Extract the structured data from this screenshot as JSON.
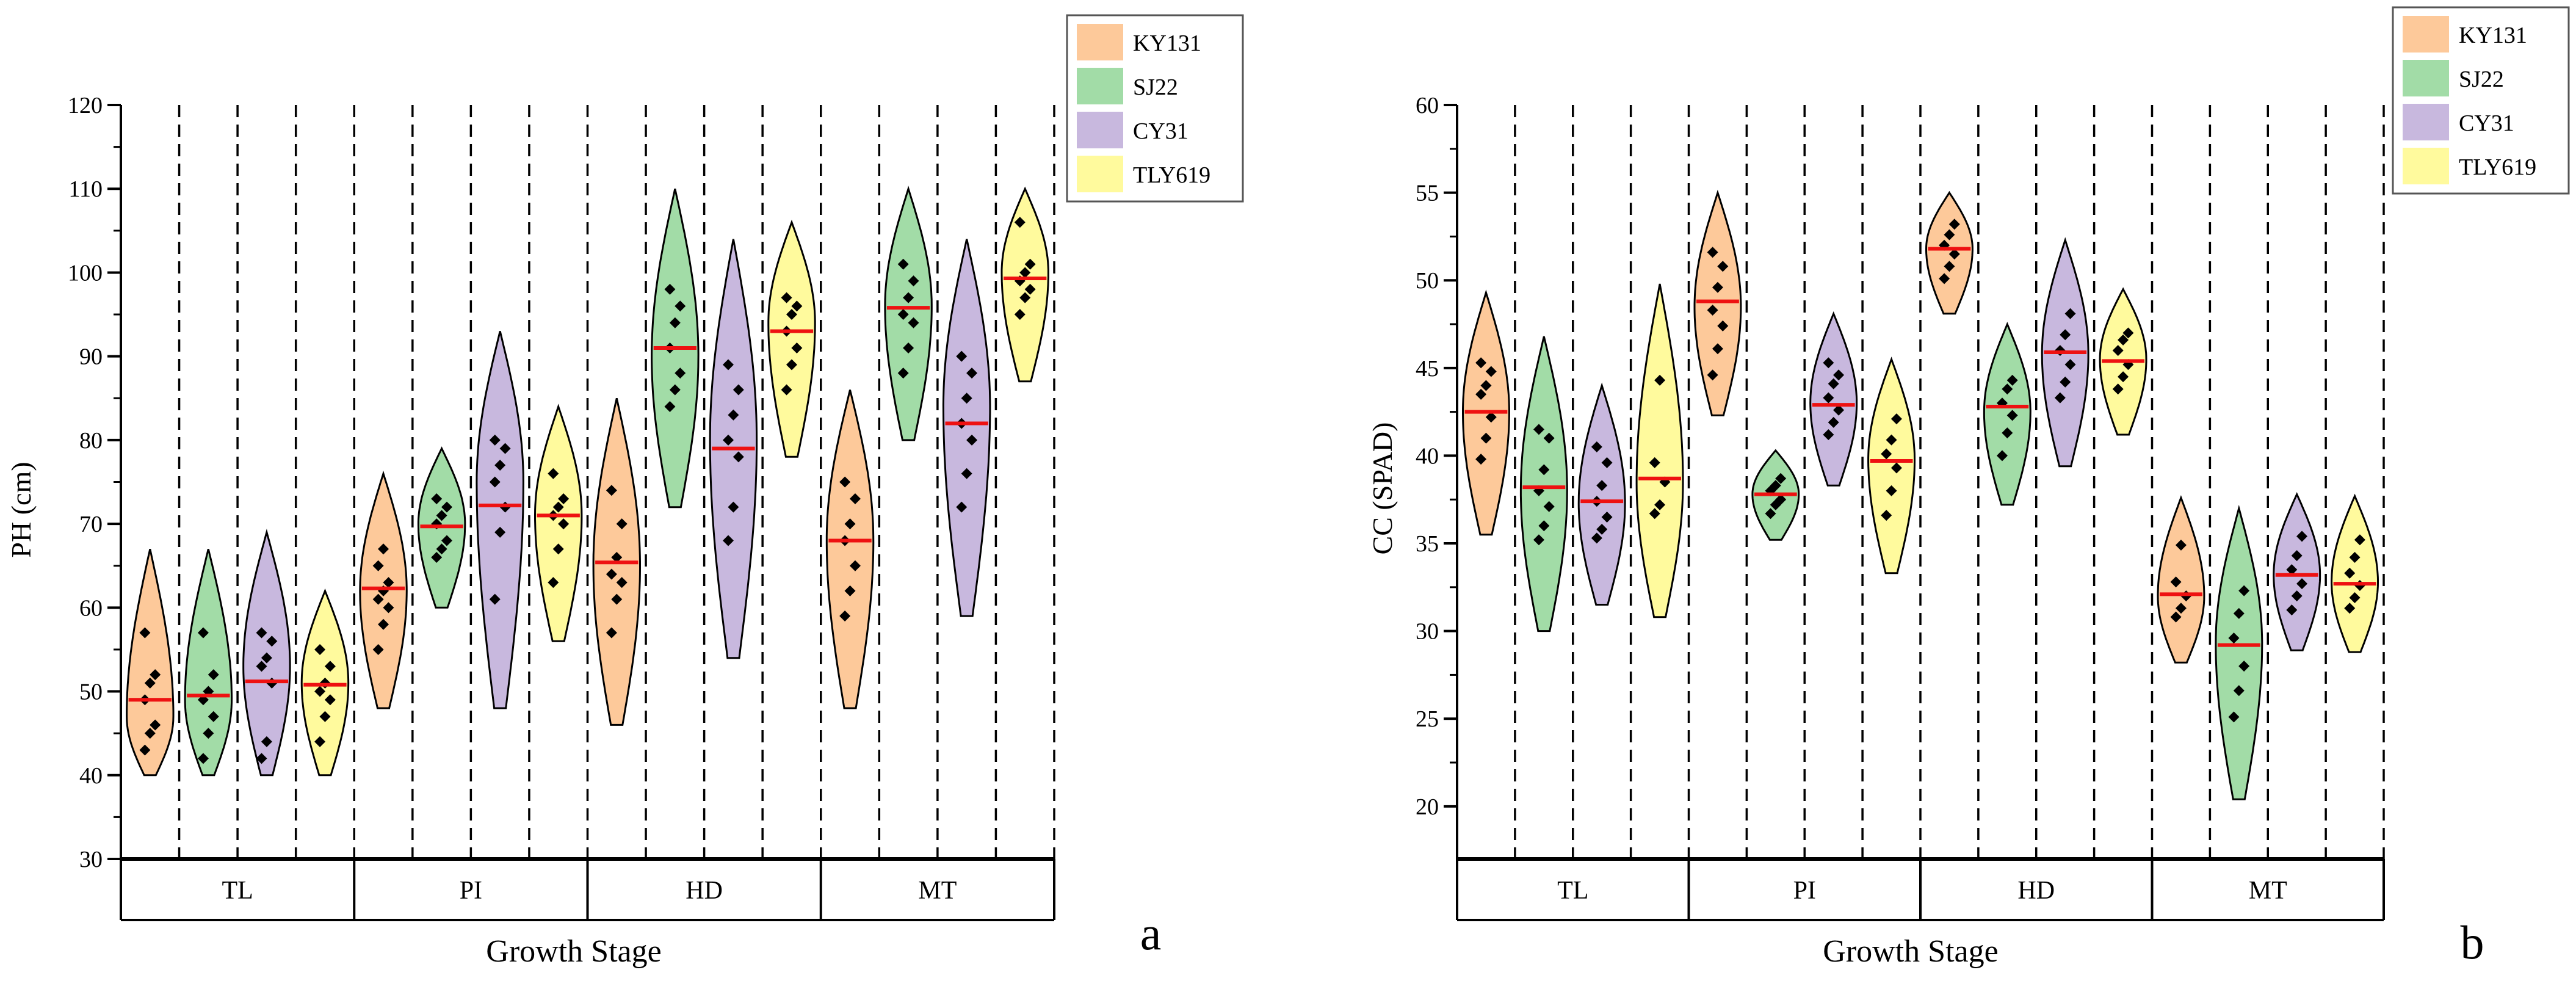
{
  "chart_data": [
    {
      "type": "violin",
      "panel_label": "a",
      "ylabel": "PH (cm)",
      "xlabel": "Growth Stage",
      "ylim": [
        30,
        120
      ],
      "yticks": [
        30,
        40,
        50,
        60,
        70,
        80,
        90,
        100,
        110,
        120
      ],
      "stages": [
        "TL",
        "PI",
        "HD",
        "MT"
      ],
      "legend": [
        "KY131",
        "SJ22",
        "CY31",
        "TLY619"
      ],
      "violins": [
        {
          "stage": "TL",
          "variety": "KY131",
          "min": 40,
          "max": 67,
          "peak": 47,
          "median": 49,
          "points": [
            43,
            45,
            46,
            49,
            51,
            52,
            57
          ]
        },
        {
          "stage": "TL",
          "variety": "SJ22",
          "min": 40,
          "max": 67,
          "peak": 49,
          "median": 49.5,
          "points": [
            42,
            45,
            47,
            49,
            50,
            52,
            57
          ]
        },
        {
          "stage": "TL",
          "variety": "CY31",
          "min": 40,
          "max": 69,
          "peak": 53,
          "median": 51.2,
          "points": [
            42,
            44,
            51,
            53,
            54,
            56,
            57
          ]
        },
        {
          "stage": "TL",
          "variety": "TLY619",
          "min": 40,
          "max": 62,
          "peak": 51,
          "median": 50.8,
          "points": [
            44,
            47,
            49,
            50,
            51,
            53,
            55
          ]
        },
        {
          "stage": "PI",
          "variety": "KY131",
          "min": 48,
          "max": 76,
          "peak": 62,
          "median": 62.3,
          "points": [
            55,
            58,
            60,
            61,
            62,
            63,
            65,
            67
          ]
        },
        {
          "stage": "PI",
          "variety": "SJ22",
          "min": 60,
          "max": 79,
          "peak": 70,
          "median": 69.7,
          "points": [
            66,
            67,
            68,
            70,
            71,
            72,
            73
          ]
        },
        {
          "stage": "PI",
          "variety": "CY31",
          "min": 48,
          "max": 93,
          "peak": 75,
          "median": 72.2,
          "points": [
            61,
            69,
            72,
            75,
            77,
            79,
            80
          ]
        },
        {
          "stage": "PI",
          "variety": "TLY619",
          "min": 56,
          "max": 84,
          "peak": 71,
          "median": 71,
          "points": [
            63,
            67,
            70,
            71,
            72,
            73,
            76
          ]
        },
        {
          "stage": "HD",
          "variety": "KY131",
          "min": 46,
          "max": 85,
          "peak": 65,
          "median": 65.4,
          "points": [
            57,
            61,
            63,
            64,
            66,
            70,
            74
          ]
        },
        {
          "stage": "HD",
          "variety": "SJ22",
          "min": 72,
          "max": 110,
          "peak": 90,
          "median": 91,
          "points": [
            84,
            86,
            88,
            91,
            94,
            96,
            98
          ]
        },
        {
          "stage": "HD",
          "variety": "CY31",
          "min": 54,
          "max": 104,
          "peak": 80,
          "median": 79,
          "points": [
            68,
            72,
            78,
            80,
            83,
            86,
            89
          ]
        },
        {
          "stage": "HD",
          "variety": "TLY619",
          "min": 78,
          "max": 106,
          "peak": 94,
          "median": 93,
          "points": [
            86,
            89,
            91,
            93,
            95,
            96,
            97
          ]
        },
        {
          "stage": "MT",
          "variety": "KY131",
          "min": 48,
          "max": 86,
          "peak": 68,
          "median": 68,
          "points": [
            59,
            62,
            65,
            68,
            70,
            73,
            75
          ]
        },
        {
          "stage": "MT",
          "variety": "SJ22",
          "min": 80,
          "max": 110,
          "peak": 96,
          "median": 95.8,
          "points": [
            88,
            91,
            94,
            95,
            97,
            99,
            101
          ]
        },
        {
          "stage": "MT",
          "variety": "CY31",
          "min": 59,
          "max": 104,
          "peak": 84,
          "median": 82,
          "points": [
            72,
            76,
            80,
            82,
            85,
            88,
            90
          ]
        },
        {
          "stage": "MT",
          "variety": "TLY619",
          "min": 87,
          "max": 110,
          "peak": 100,
          "median": 99.3,
          "points": [
            95,
            97,
            98,
            99,
            100,
            101,
            106
          ]
        }
      ]
    },
    {
      "type": "violin",
      "panel_label": "b",
      "ylabel": "CC (SPAD)",
      "xlabel": "Growth Stage",
      "ylim": [
        17,
        60
      ],
      "yticks": [
        20,
        25,
        30,
        35,
        40,
        45,
        50,
        55,
        60
      ],
      "stages": [
        "TL",
        "PI",
        "HD",
        "MT"
      ],
      "legend": [
        "KY131",
        "SJ22",
        "CY31",
        "TLY619"
      ],
      "violins": [
        {
          "stage": "TL",
          "variety": "KY131",
          "min": 35.5,
          "max": 49.3,
          "peak": 42.5,
          "median": 42.5,
          "points": [
            39.8,
            41,
            42.2,
            43.5,
            44,
            44.8,
            45.3
          ]
        },
        {
          "stage": "TL",
          "variety": "SJ22",
          "min": 30,
          "max": 46.8,
          "peak": 38,
          "median": 38.2,
          "points": [
            35.2,
            36,
            37.1,
            38,
            39.2,
            41,
            41.5
          ]
        },
        {
          "stage": "TL",
          "variety": "CY31",
          "min": 31.5,
          "max": 44,
          "peak": 37.3,
          "median": 37.4,
          "points": [
            35.3,
            35.8,
            36.5,
            37.4,
            38.3,
            39.6,
            40.5
          ]
        },
        {
          "stage": "TL",
          "variety": "TLY619",
          "min": 30.8,
          "max": 49.8,
          "peak": 38.5,
          "median": 38.7,
          "points": [
            36.7,
            37.2,
            38.5,
            39.6,
            44.3
          ]
        },
        {
          "stage": "PI",
          "variety": "KY131",
          "min": 42.3,
          "max": 55,
          "peak": 48.5,
          "median": 48.8,
          "points": [
            44.6,
            46.1,
            47.4,
            48.3,
            49.6,
            50.8,
            51.6
          ]
        },
        {
          "stage": "PI",
          "variety": "SJ22",
          "min": 35.2,
          "max": 40.3,
          "peak": 37.8,
          "median": 37.8,
          "points": [
            36.7,
            37.2,
            37.5,
            38,
            38.3,
            38.7
          ]
        },
        {
          "stage": "PI",
          "variety": "CY31",
          "min": 38.3,
          "max": 48.1,
          "peak": 43,
          "median": 42.9,
          "points": [
            41.2,
            41.9,
            42.6,
            43.3,
            44.1,
            44.6,
            45.3
          ]
        },
        {
          "stage": "PI",
          "variety": "TLY619",
          "min": 33.3,
          "max": 45.5,
          "peak": 39.8,
          "median": 39.7,
          "points": [
            36.6,
            38,
            39.3,
            40.1,
            40.9,
            42.1
          ]
        },
        {
          "stage": "HD",
          "variety": "KY131",
          "min": 48.1,
          "max": 55,
          "peak": 51.8,
          "median": 51.8,
          "points": [
            50.1,
            50.8,
            51.5,
            52,
            52.6,
            53.2
          ]
        },
        {
          "stage": "HD",
          "variety": "SJ22",
          "min": 37.2,
          "max": 47.5,
          "peak": 42.5,
          "median": 42.8,
          "points": [
            40,
            41.3,
            42.3,
            43,
            43.8,
            44.3
          ]
        },
        {
          "stage": "HD",
          "variety": "CY31",
          "min": 39.4,
          "max": 52.3,
          "peak": 45.8,
          "median": 45.9,
          "points": [
            43.3,
            44.2,
            45.2,
            46,
            46.9,
            48.1
          ]
        },
        {
          "stage": "HD",
          "variety": "TLY619",
          "min": 41.2,
          "max": 49.5,
          "peak": 45.5,
          "median": 45.4,
          "points": [
            43.8,
            44.5,
            45.2,
            46,
            46.6,
            47
          ]
        },
        {
          "stage": "MT",
          "variety": "KY131",
          "min": 28.2,
          "max": 37.6,
          "peak": 32,
          "median": 32.1,
          "points": [
            30.8,
            31.3,
            32,
            32.8,
            34.9
          ]
        },
        {
          "stage": "MT",
          "variety": "SJ22",
          "min": 20.4,
          "max": 37,
          "peak": 29.3,
          "median": 29.2,
          "points": [
            25.1,
            26.6,
            28,
            29.6,
            31,
            32.3
          ]
        },
        {
          "stage": "MT",
          "variety": "CY31",
          "min": 28.9,
          "max": 37.8,
          "peak": 33.2,
          "median": 33.2,
          "points": [
            31.2,
            32,
            32.7,
            33.5,
            34.3,
            35.4
          ]
        },
        {
          "stage": "MT",
          "variety": "TLY619",
          "min": 28.8,
          "max": 37.7,
          "peak": 32.8,
          "median": 32.7,
          "points": [
            31.3,
            31.9,
            32.6,
            33.3,
            34.2,
            35.2
          ]
        }
      ]
    }
  ],
  "colors": {
    "KY131": "#fdc99a",
    "SJ22": "#a2dca7",
    "CY31": "#c8b8de",
    "TLY619": "#fffa9d",
    "median_line": "#ee1111",
    "points": "#000000"
  }
}
